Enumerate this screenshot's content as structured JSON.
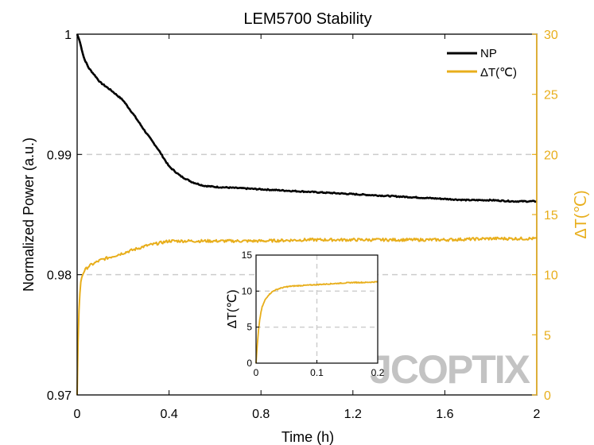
{
  "colors": {
    "np": "#000000",
    "delta_t": "#E8AE1B",
    "grid": "#cccccc",
    "watermark": "#bdbdbd",
    "watermark_accent": "#E8AE1B"
  },
  "watermark": "JCOPTIX",
  "chart_data": [
    {
      "type": "line",
      "title": "LEM5700 Stability",
      "xlabel": "Time (h)",
      "ylabel": "Normalized Power (a.u.)",
      "y2label": "ΔT(℃)",
      "xlim": [
        0,
        2
      ],
      "ylim": [
        0.97,
        1
      ],
      "y2lim": [
        0,
        30
      ],
      "xticks": [
        0,
        0.4,
        0.8,
        1.2,
        1.6,
        2
      ],
      "yticks": [
        0.97,
        0.98,
        0.99,
        1
      ],
      "y2ticks": [
        0,
        5,
        10,
        15,
        20,
        25,
        30
      ],
      "xtick_labels": [
        "0",
        "0.4",
        "0.8",
        "1.2",
        "1.6",
        "2"
      ],
      "ytick_labels": [
        "0.97",
        "0.98",
        "0.99",
        "1"
      ],
      "y2tick_labels": [
        "0",
        "5",
        "10",
        "15",
        "20",
        "25",
        "30"
      ],
      "grid": "dashed horizontal at 0.98 and 0.99",
      "legend": "top-right",
      "series": [
        {
          "name": "NP",
          "axis": "left",
          "color": "#000000",
          "x": [
            0,
            0.01,
            0.03,
            0.05,
            0.08,
            0.1,
            0.15,
            0.2,
            0.25,
            0.3,
            0.35,
            0.4,
            0.45,
            0.5,
            0.55,
            0.6,
            0.7,
            0.8,
            0.9,
            1.0,
            1.1,
            1.2,
            1.3,
            1.4,
            1.5,
            1.6,
            1.7,
            1.8,
            1.9,
            2.0
          ],
          "values": [
            1.0,
            0.9995,
            0.998,
            0.9972,
            0.9965,
            0.996,
            0.9953,
            0.9945,
            0.9932,
            0.9918,
            0.9905,
            0.989,
            0.9882,
            0.9877,
            0.9874,
            0.9873,
            0.9872,
            0.9871,
            0.987,
            0.9869,
            0.9868,
            0.9867,
            0.9866,
            0.9865,
            0.9864,
            0.9863,
            0.9862,
            0.9862,
            0.9861,
            0.9861
          ]
        },
        {
          "name": "ΔT(℃)",
          "axis": "right",
          "color": "#E8AE1B",
          "x": [
            0,
            0.003,
            0.006,
            0.01,
            0.015,
            0.02,
            0.03,
            0.05,
            0.08,
            0.1,
            0.15,
            0.2,
            0.3,
            0.4,
            0.5,
            0.6,
            0.8,
            1.0,
            1.2,
            1.4,
            1.6,
            1.8,
            2.0
          ],
          "values": [
            0,
            3.5,
            6,
            8,
            9.2,
            9.8,
            10.3,
            10.7,
            11.0,
            11.2,
            11.5,
            11.8,
            12.4,
            12.8,
            12.8,
            12.8,
            12.8,
            12.9,
            12.9,
            12.9,
            12.9,
            13.0,
            13.0
          ]
        }
      ]
    },
    {
      "type": "line",
      "title": "",
      "xlabel": "",
      "ylabel": "ΔT(℃)",
      "xlim": [
        0,
        0.2
      ],
      "ylim": [
        0,
        15
      ],
      "xticks": [
        0,
        0.1,
        0.2
      ],
      "yticks": [
        0,
        5,
        10,
        15
      ],
      "xtick_labels": [
        "0",
        "0.1",
        "0.2"
      ],
      "ytick_labels": [
        "0",
        "5",
        "10",
        "15"
      ],
      "grid": "dashed at x=0.1 and y=5, 10",
      "series": [
        {
          "color": "#E8AE1B",
          "x": [
            0,
            0.002,
            0.004,
            0.006,
            0.008,
            0.01,
            0.015,
            0.02,
            0.025,
            0.03,
            0.04,
            0.05,
            0.06,
            0.08,
            0.1,
            0.12,
            0.14,
            0.16,
            0.18,
            0.2
          ],
          "values": [
            0,
            2.5,
            4.5,
            6.0,
            7.0,
            7.8,
            8.8,
            9.4,
            9.8,
            10.1,
            10.4,
            10.6,
            10.7,
            10.8,
            10.9,
            11.0,
            11.1,
            11.2,
            11.2,
            11.3
          ]
        }
      ]
    }
  ]
}
